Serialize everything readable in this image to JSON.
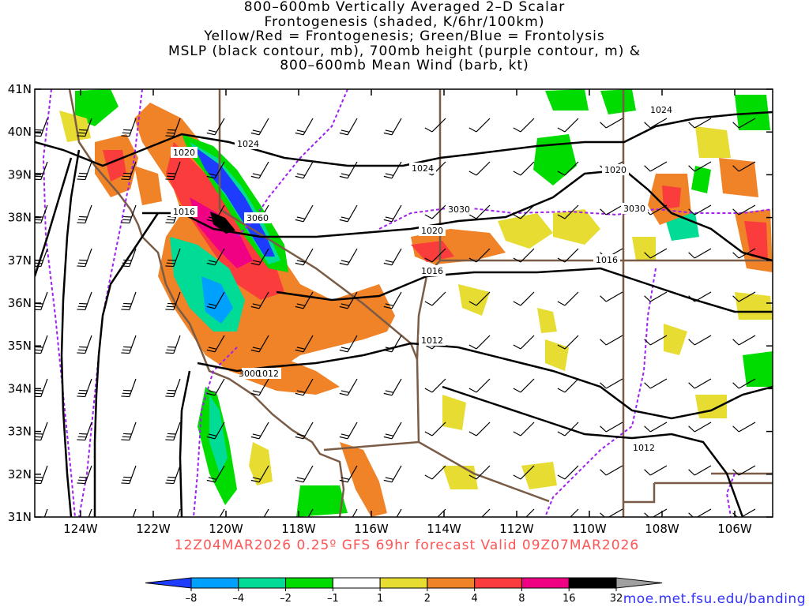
{
  "title": {
    "lines": [
      "800–600mb Vertically Averaged 2–D Scalar",
      "Frontogenesis (shaded, K/6hr/100km)",
      "Yellow/Red = Frontogenesis;  Green/Blue = Frontolysis",
      "MSLP (black contour, mb), 700mb height (purple contour, m) &",
      "800–600mb Mean Wind (barb, kt)"
    ]
  },
  "subtitle": "12Z04MAR2026 0.25º GFS 69hr forecast Valid 09Z07MAR2026",
  "credit": "moe.met.fsu.edu/banding",
  "axes": {
    "lat_labels": [
      "41N",
      "40N",
      "39N",
      "38N",
      "37N",
      "36N",
      "35N",
      "34N",
      "33N",
      "32N",
      "31N"
    ],
    "lon_labels": [
      "124W",
      "122W",
      "120W",
      "118W",
      "116W",
      "114W",
      "112W",
      "110W",
      "108W",
      "106W"
    ]
  },
  "contour_labels": {
    "mslp": [
      "1024",
      "1024",
      "1024",
      "1020",
      "1020",
      "1020",
      "1016",
      "1016",
      "1016",
      "1012",
      "1012",
      "1012"
    ],
    "height": [
      "3060",
      "3030",
      "3030",
      "3000"
    ]
  },
  "legend": {
    "labels": [
      "–8",
      "–4",
      "–2",
      "–1",
      "1",
      "2",
      "4",
      "8",
      "16",
      "32"
    ],
    "colors": [
      "#1e3cff",
      "#00a0ff",
      "#00dc96",
      "#00dc00",
      "#ffffff",
      "#e6dc32",
      "#f08228",
      "#fa3c3c",
      "#f00082",
      "#000000",
      "#a0a0a0"
    ]
  },
  "colors": {
    "mslp_contour": "#000000",
    "height_contour": "#a020f0",
    "borders": "#7a5c46",
    "subtitle": "#ff5555",
    "credit": "#3333ff"
  }
}
